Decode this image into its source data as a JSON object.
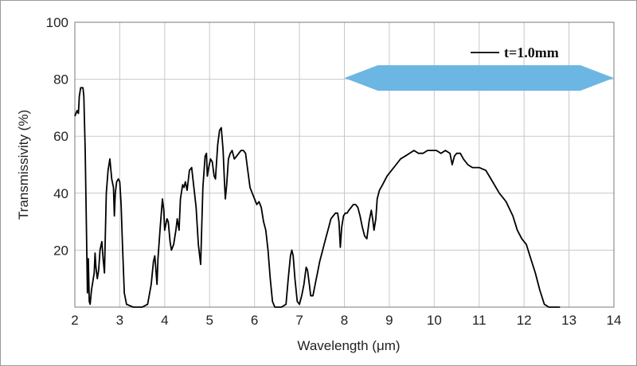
{
  "chart_data": {
    "type": "line",
    "title": "",
    "xlabel": "Wavelength (μm)",
    "ylabel": "Transmissivity (%)",
    "xlim": [
      2,
      14
    ],
    "ylim": [
      0,
      100
    ],
    "x_ticks": [
      "2",
      "3",
      "4",
      "5",
      "6",
      "7",
      "8",
      "9",
      "10",
      "11",
      "12",
      "13",
      "14"
    ],
    "y_ticks": [
      "20",
      "40",
      "60",
      "80",
      "100"
    ],
    "grid": true,
    "legend_position": "top-right",
    "band_arrow": {
      "from": 8.0,
      "to": 14.0,
      "color": "#6cb6e4"
    },
    "series": [
      {
        "name": "t=1.0mm",
        "color": "#000000",
        "points": [
          [
            2.0,
            67
          ],
          [
            2.05,
            69
          ],
          [
            2.08,
            68
          ],
          [
            2.1,
            74
          ],
          [
            2.13,
            77
          ],
          [
            2.18,
            77
          ],
          [
            2.2,
            74
          ],
          [
            2.23,
            55
          ],
          [
            2.26,
            25
          ],
          [
            2.28,
            5
          ],
          [
            2.3,
            17
          ],
          [
            2.32,
            2
          ],
          [
            2.34,
            1
          ],
          [
            2.37,
            6
          ],
          [
            2.4,
            9
          ],
          [
            2.43,
            12
          ],
          [
            2.45,
            19
          ],
          [
            2.47,
            14
          ],
          [
            2.5,
            10
          ],
          [
            2.53,
            13
          ],
          [
            2.56,
            20
          ],
          [
            2.6,
            23
          ],
          [
            2.63,
            17
          ],
          [
            2.66,
            12
          ],
          [
            2.7,
            40
          ],
          [
            2.74,
            48
          ],
          [
            2.78,
            52
          ],
          [
            2.82,
            45
          ],
          [
            2.86,
            42
          ],
          [
            2.88,
            32
          ],
          [
            2.9,
            40
          ],
          [
            2.93,
            44
          ],
          [
            2.97,
            45
          ],
          [
            3.0,
            44
          ],
          [
            3.03,
            36
          ],
          [
            3.06,
            22
          ],
          [
            3.1,
            5
          ],
          [
            3.15,
            1
          ],
          [
            3.3,
            0
          ],
          [
            3.5,
            0
          ],
          [
            3.62,
            1
          ],
          [
            3.7,
            8
          ],
          [
            3.75,
            16
          ],
          [
            3.78,
            18
          ],
          [
            3.81,
            12
          ],
          [
            3.83,
            8
          ],
          [
            3.85,
            17
          ],
          [
            3.9,
            28
          ],
          [
            3.95,
            38
          ],
          [
            3.98,
            34
          ],
          [
            4.0,
            27
          ],
          [
            4.05,
            31
          ],
          [
            4.08,
            30
          ],
          [
            4.12,
            23
          ],
          [
            4.15,
            20
          ],
          [
            4.2,
            22
          ],
          [
            4.25,
            27
          ],
          [
            4.28,
            31
          ],
          [
            4.32,
            27
          ],
          [
            4.35,
            38
          ],
          [
            4.4,
            43
          ],
          [
            4.43,
            42
          ],
          [
            4.46,
            44
          ],
          [
            4.5,
            41
          ],
          [
            4.55,
            48
          ],
          [
            4.6,
            49
          ],
          [
            4.65,
            42
          ],
          [
            4.7,
            35
          ],
          [
            4.75,
            22
          ],
          [
            4.8,
            15
          ],
          [
            4.85,
            42
          ],
          [
            4.9,
            53
          ],
          [
            4.93,
            54
          ],
          [
            4.95,
            46
          ],
          [
            4.98,
            49
          ],
          [
            5.02,
            52
          ],
          [
            5.06,
            51
          ],
          [
            5.1,
            46
          ],
          [
            5.13,
            45
          ],
          [
            5.18,
            57
          ],
          [
            5.22,
            62
          ],
          [
            5.26,
            63
          ],
          [
            5.3,
            55
          ],
          [
            5.33,
            44
          ],
          [
            5.35,
            38
          ],
          [
            5.38,
            43
          ],
          [
            5.42,
            52
          ],
          [
            5.46,
            54
          ],
          [
            5.5,
            55
          ],
          [
            5.55,
            52
          ],
          [
            5.6,
            53
          ],
          [
            5.65,
            54
          ],
          [
            5.7,
            55
          ],
          [
            5.75,
            55
          ],
          [
            5.8,
            54
          ],
          [
            5.85,
            48
          ],
          [
            5.9,
            42
          ],
          [
            5.95,
            40
          ],
          [
            6.0,
            38
          ],
          [
            6.05,
            36
          ],
          [
            6.1,
            37
          ],
          [
            6.15,
            35
          ],
          [
            6.2,
            30
          ],
          [
            6.25,
            27
          ],
          [
            6.3,
            20
          ],
          [
            6.35,
            10
          ],
          [
            6.4,
            2
          ],
          [
            6.45,
            0
          ],
          [
            6.6,
            0
          ],
          [
            6.7,
            1
          ],
          [
            6.75,
            10
          ],
          [
            6.8,
            18
          ],
          [
            6.83,
            20
          ],
          [
            6.86,
            18
          ],
          [
            6.9,
            10
          ],
          [
            6.95,
            2
          ],
          [
            7.0,
            1
          ],
          [
            7.05,
            4
          ],
          [
            7.1,
            8
          ],
          [
            7.15,
            14
          ],
          [
            7.18,
            13
          ],
          [
            7.22,
            8
          ],
          [
            7.25,
            4
          ],
          [
            7.3,
            4
          ],
          [
            7.35,
            8
          ],
          [
            7.4,
            12
          ],
          [
            7.45,
            16
          ],
          [
            7.5,
            19
          ],
          [
            7.55,
            22
          ],
          [
            7.6,
            25
          ],
          [
            7.65,
            28
          ],
          [
            7.7,
            31
          ],
          [
            7.75,
            32
          ],
          [
            7.8,
            33
          ],
          [
            7.85,
            33
          ],
          [
            7.88,
            30
          ],
          [
            7.91,
            21
          ],
          [
            7.94,
            28
          ],
          [
            7.98,
            32
          ],
          [
            8.02,
            33
          ],
          [
            8.06,
            33
          ],
          [
            8.1,
            34
          ],
          [
            8.15,
            35
          ],
          [
            8.2,
            36
          ],
          [
            8.25,
            36
          ],
          [
            8.3,
            35
          ],
          [
            8.35,
            32
          ],
          [
            8.4,
            28
          ],
          [
            8.45,
            25
          ],
          [
            8.5,
            24
          ],
          [
            8.55,
            30
          ],
          [
            8.6,
            34
          ],
          [
            8.63,
            31
          ],
          [
            8.66,
            27
          ],
          [
            8.7,
            31
          ],
          [
            8.73,
            38
          ],
          [
            8.78,
            41
          ],
          [
            8.85,
            43
          ],
          [
            8.95,
            46
          ],
          [
            9.05,
            48
          ],
          [
            9.15,
            50
          ],
          [
            9.25,
            52
          ],
          [
            9.35,
            53
          ],
          [
            9.45,
            54
          ],
          [
            9.55,
            55
          ],
          [
            9.65,
            54
          ],
          [
            9.75,
            54
          ],
          [
            9.85,
            55
          ],
          [
            9.95,
            55
          ],
          [
            10.05,
            55
          ],
          [
            10.15,
            54
          ],
          [
            10.25,
            55
          ],
          [
            10.35,
            54
          ],
          [
            10.4,
            50
          ],
          [
            10.45,
            53
          ],
          [
            10.5,
            54
          ],
          [
            10.58,
            54
          ],
          [
            10.65,
            52
          ],
          [
            10.75,
            50
          ],
          [
            10.85,
            49
          ],
          [
            11.0,
            49
          ],
          [
            11.15,
            48
          ],
          [
            11.3,
            44
          ],
          [
            11.45,
            40
          ],
          [
            11.6,
            37
          ],
          [
            11.75,
            32
          ],
          [
            11.85,
            27
          ],
          [
            11.95,
            24
          ],
          [
            12.05,
            22
          ],
          [
            12.15,
            17
          ],
          [
            12.25,
            12
          ],
          [
            12.35,
            6
          ],
          [
            12.45,
            1
          ],
          [
            12.55,
            0
          ],
          [
            12.8,
            0
          ]
        ]
      }
    ]
  }
}
